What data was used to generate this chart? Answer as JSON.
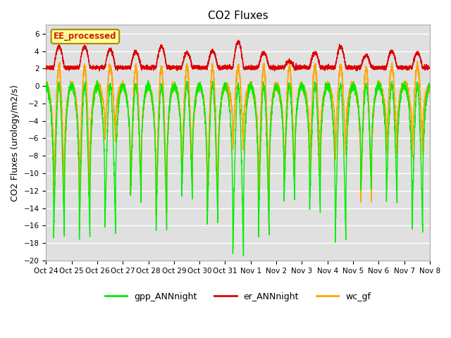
{
  "title": "CO2 Fluxes",
  "ylabel": "CO2 Fluxes (urology/m2/s)",
  "ylim": [
    -20,
    7
  ],
  "yticks": [
    -20,
    -18,
    -16,
    -14,
    -12,
    -10,
    -8,
    -6,
    -4,
    -2,
    0,
    2,
    4,
    6
  ],
  "background_color": "#ffffff",
  "plot_bg_color": "#e0e0e0",
  "grid_color": "#ffffff",
  "series": {
    "gpp_ANNnight": {
      "color": "#00ee00",
      "linewidth": 1.0
    },
    "er_ANNnight": {
      "color": "#dd0000",
      "linewidth": 1.0
    },
    "wc_gf": {
      "color": "#ffa500",
      "linewidth": 1.2
    }
  },
  "legend_label": "EE_processed",
  "legend_box_color": "#ffff99",
  "legend_box_edge": "#aa8800",
  "n_days": 15,
  "xtick_labels": [
    "Oct 24",
    "Oct 25",
    "Oct 26",
    "Oct 27",
    "Oct 28",
    "Oct 29",
    "Oct 30",
    "Oct 31",
    "Nov 1",
    "Nov 2",
    "Nov 3",
    "Nov 4",
    "Nov 5",
    "Nov 6",
    "Nov 7",
    "Nov 8"
  ],
  "title_fontsize": 11,
  "axis_fontsize": 9,
  "tick_fontsize": 7.5,
  "gpp_night_depths": [
    -17.5,
    -17.8,
    -16.8,
    -13.2,
    -16.5,
    -13.0,
    -16.2,
    -19.8,
    -17.3,
    -13.2,
    -14.5,
    -18.0,
    -12.0,
    -13.5,
    -17.0
  ],
  "er_day_peaks": [
    4.5,
    4.5,
    4.2,
    3.9,
    4.5,
    3.8,
    4.0,
    5.0,
    3.8,
    2.8,
    3.8,
    4.5,
    3.5,
    4.0,
    3.8
  ],
  "wc_night_depths": [
    -12.8,
    -12.5,
    -6.5,
    -13.0,
    -15.0,
    -11.5,
    -14.0,
    -7.5,
    -13.5,
    -12.0,
    -10.0,
    -8.5,
    -13.5,
    -8.0,
    -8.0
  ]
}
